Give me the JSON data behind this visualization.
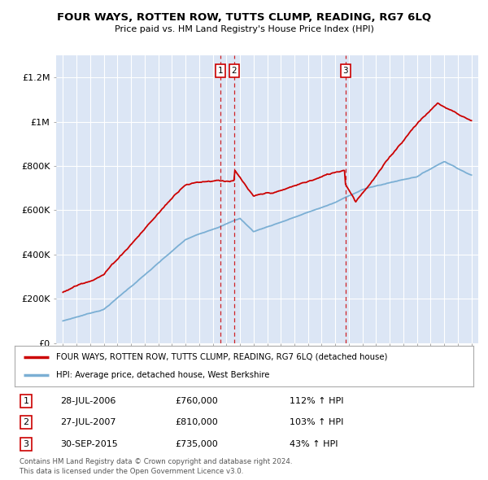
{
  "title": "FOUR WAYS, ROTTEN ROW, TUTTS CLUMP, READING, RG7 6LQ",
  "subtitle": "Price paid vs. HM Land Registry's House Price Index (HPI)",
  "legend_line1": "FOUR WAYS, ROTTEN ROW, TUTTS CLUMP, READING, RG7 6LQ (detached house)",
  "legend_line2": "HPI: Average price, detached house, West Berkshire",
  "footer1": "Contains HM Land Registry data © Crown copyright and database right 2024.",
  "footer2": "This data is licensed under the Open Government Licence v3.0.",
  "transactions": [
    {
      "label": "1",
      "date": "28-JUL-2006",
      "price": "£760,000",
      "pct": "112%",
      "dir": "↑",
      "x": 2006.57
    },
    {
      "label": "2",
      "date": "27-JUL-2007",
      "price": "£810,000",
      "pct": "103%",
      "dir": "↑",
      "x": 2007.57
    },
    {
      "label": "3",
      "date": "30-SEP-2015",
      "price": "£735,000",
      "pct": "43%",
      "dir": "↑",
      "x": 2015.75
    }
  ],
  "ylim": [
    0,
    1300000
  ],
  "yticks": [
    0,
    200000,
    400000,
    600000,
    800000,
    1000000,
    1200000
  ],
  "ytick_labels": [
    "£0",
    "£200K",
    "£400K",
    "£600K",
    "£800K",
    "£1M",
    "£1.2M"
  ],
  "xlim": [
    1994.5,
    2025.5
  ],
  "xticks": [
    1995,
    1996,
    1997,
    1998,
    1999,
    2000,
    2001,
    2002,
    2003,
    2004,
    2005,
    2006,
    2007,
    2008,
    2009,
    2010,
    2011,
    2012,
    2013,
    2014,
    2015,
    2016,
    2017,
    2018,
    2019,
    2020,
    2021,
    2022,
    2023,
    2024,
    2025
  ],
  "hpi_color": "#7bafd4",
  "price_color": "#cc0000",
  "bg_chart": "#dce6f5",
  "grid_color": "#ffffff",
  "transaction_color": "#cc0000",
  "legend_border": "#aaaaaa"
}
